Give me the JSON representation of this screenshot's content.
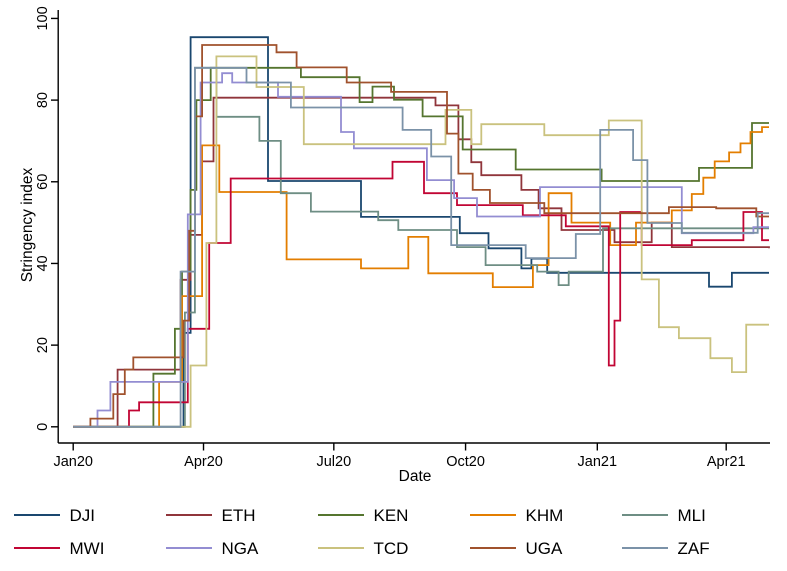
{
  "figure": {
    "x_axis_title": "Date",
    "y_axis_title": "Stringency index"
  },
  "chart_data": {
    "type": "line",
    "line_style": "step-post",
    "title": "",
    "xlabel": "Date",
    "ylabel": "Stringency index",
    "grid": false,
    "legend_position": "bottom",
    "x_axis": {
      "range": [
        "2020-01-01",
        "2021-05-01"
      ],
      "ticks": [
        {
          "label": "Jan20",
          "date": "2020-01-01"
        },
        {
          "label": "Apr20",
          "date": "2020-04-01"
        },
        {
          "label": "Jul20",
          "date": "2020-07-01"
        },
        {
          "label": "Oct20",
          "date": "2020-10-01"
        },
        {
          "label": "Jan21",
          "date": "2021-01-01"
        },
        {
          "label": "Apr21",
          "date": "2021-04-01"
        }
      ]
    },
    "y_axis": {
      "range": [
        0,
        100
      ],
      "ticks": [
        0,
        20,
        40,
        60,
        80,
        100
      ]
    },
    "series": [
      {
        "name": "DJI",
        "color": "#1A476F",
        "points": [
          [
            "2020-01-01",
            0
          ],
          [
            "2020-03-18",
            23
          ],
          [
            "2020-03-23",
            95.4
          ],
          [
            "2020-05-16",
            60.2
          ],
          [
            "2020-07-20",
            51.4
          ],
          [
            "2020-09-27",
            47.4
          ],
          [
            "2020-10-17",
            43.7
          ],
          [
            "2020-11-09",
            38.8
          ],
          [
            "2020-11-16",
            41.2
          ],
          [
            "2020-11-27",
            37.7
          ],
          [
            "2021-03-20",
            34.3
          ],
          [
            "2021-04-05",
            37.7
          ],
          [
            "2021-05-01",
            37.7
          ]
        ]
      },
      {
        "name": "ETH",
        "color": "#90353B",
        "points": [
          [
            "2020-01-01",
            0
          ],
          [
            "2020-02-01",
            14
          ],
          [
            "2020-03-16",
            36
          ],
          [
            "2020-03-23",
            47
          ],
          [
            "2020-03-31",
            65
          ],
          [
            "2020-04-08",
            80.6
          ],
          [
            "2020-09-10",
            78.7
          ],
          [
            "2020-09-26",
            70.4
          ],
          [
            "2020-10-05",
            64.8
          ],
          [
            "2020-10-12",
            61.6
          ],
          [
            "2020-11-09",
            58
          ],
          [
            "2020-11-21",
            53.5
          ],
          [
            "2020-12-07",
            48.2
          ],
          [
            "2021-01-13",
            45.2
          ],
          [
            "2021-02-08",
            50
          ],
          [
            "2021-02-22",
            44
          ],
          [
            "2021-05-01",
            43.7
          ]
        ]
      },
      {
        "name": "KEN",
        "color": "#55752F",
        "points": [
          [
            "2020-01-01",
            0
          ],
          [
            "2020-02-26",
            13
          ],
          [
            "2020-03-12",
            24
          ],
          [
            "2020-03-17",
            38
          ],
          [
            "2020-03-23",
            58
          ],
          [
            "2020-03-27",
            80
          ],
          [
            "2020-04-06",
            87.9
          ],
          [
            "2020-06-08",
            85.6
          ],
          [
            "2020-07-19",
            79.5
          ],
          [
            "2020-07-28",
            83.3
          ],
          [
            "2020-08-12",
            80.1
          ],
          [
            "2020-09-01",
            76
          ],
          [
            "2020-09-29",
            67.9
          ],
          [
            "2020-11-05",
            63
          ],
          [
            "2021-01-04",
            60.2
          ],
          [
            "2021-03-13",
            63.4
          ],
          [
            "2021-04-19",
            74.4
          ],
          [
            "2021-05-01",
            74.4
          ]
        ]
      },
      {
        "name": "KHM",
        "color": "#E37E00",
        "points": [
          [
            "2020-01-01",
            0
          ],
          [
            "2020-03-01",
            11
          ],
          [
            "2020-03-17",
            32
          ],
          [
            "2020-03-31",
            68.9
          ],
          [
            "2020-04-12",
            57.5
          ],
          [
            "2020-05-29",
            41
          ],
          [
            "2020-07-20",
            38.8
          ],
          [
            "2020-08-22",
            46.5
          ],
          [
            "2020-09-05",
            37.6
          ],
          [
            "2020-10-20",
            34.2
          ],
          [
            "2020-11-17",
            39.6
          ],
          [
            "2020-11-28",
            57.2
          ],
          [
            "2020-12-14",
            50
          ],
          [
            "2021-01-10",
            44.5
          ],
          [
            "2021-01-28",
            50
          ],
          [
            "2021-02-22",
            53
          ],
          [
            "2021-03-08",
            57
          ],
          [
            "2021-03-16",
            61
          ],
          [
            "2021-03-24",
            65
          ],
          [
            "2021-04-03",
            67.2
          ],
          [
            "2021-04-11",
            69.4
          ],
          [
            "2021-04-18",
            72.2
          ],
          [
            "2021-04-26",
            73.4
          ],
          [
            "2021-05-01",
            73.4
          ]
        ]
      },
      {
        "name": "MLI",
        "color": "#6E8E84",
        "points": [
          [
            "2020-01-01",
            0
          ],
          [
            "2020-03-19",
            28
          ],
          [
            "2020-03-26",
            87.9
          ],
          [
            "2020-04-10",
            75.9
          ],
          [
            "2020-05-10",
            70
          ],
          [
            "2020-05-25",
            57.2
          ],
          [
            "2020-06-15",
            52.7
          ],
          [
            "2020-08-01",
            50.6
          ],
          [
            "2020-08-15",
            48.2
          ],
          [
            "2020-09-25",
            44
          ],
          [
            "2020-10-15",
            39.6
          ],
          [
            "2020-11-20",
            38
          ],
          [
            "2020-12-05",
            34.7
          ],
          [
            "2020-12-12",
            38
          ],
          [
            "2021-01-05",
            48.6
          ],
          [
            "2021-05-01",
            48.6
          ]
        ]
      },
      {
        "name": "MWI",
        "color": "#C10534",
        "points": [
          [
            "2020-01-01",
            0
          ],
          [
            "2020-02-09",
            4
          ],
          [
            "2020-02-16",
            6
          ],
          [
            "2020-03-21",
            24
          ],
          [
            "2020-04-05",
            45
          ],
          [
            "2020-04-20",
            60.8
          ],
          [
            "2020-08-11",
            64.9
          ],
          [
            "2020-09-02",
            57.2
          ],
          [
            "2020-09-25",
            54.3
          ],
          [
            "2020-11-10",
            51.8
          ],
          [
            "2020-12-10",
            49.1
          ],
          [
            "2021-01-09",
            15
          ],
          [
            "2021-01-13",
            26
          ],
          [
            "2021-01-17",
            52.6
          ],
          [
            "2021-02-01",
            44.5
          ],
          [
            "2021-03-08",
            45.7
          ],
          [
            "2021-04-13",
            52.6
          ],
          [
            "2021-04-26",
            45.7
          ],
          [
            "2021-05-01",
            45.7
          ]
        ]
      },
      {
        "name": "NGA",
        "color": "#938DD2",
        "points": [
          [
            "2020-01-01",
            0
          ],
          [
            "2020-01-18",
            4
          ],
          [
            "2020-01-27",
            11
          ],
          [
            "2020-03-21",
            52
          ],
          [
            "2020-03-30",
            84.3
          ],
          [
            "2020-04-14",
            86.6
          ],
          [
            "2020-04-21",
            84.3
          ],
          [
            "2020-05-23",
            80.8
          ],
          [
            "2020-07-06",
            72.2
          ],
          [
            "2020-07-15",
            68.2
          ],
          [
            "2020-09-04",
            60.4
          ],
          [
            "2020-09-23",
            56
          ],
          [
            "2020-10-09",
            51.5
          ],
          [
            "2020-11-22",
            58.7
          ],
          [
            "2021-03-01",
            47.4
          ],
          [
            "2021-04-20",
            48.9
          ],
          [
            "2021-05-01",
            48.9
          ]
        ]
      },
      {
        "name": "TCD",
        "color": "#CAC27E",
        "points": [
          [
            "2020-01-01",
            0
          ],
          [
            "2020-03-23",
            15
          ],
          [
            "2020-04-03",
            45
          ],
          [
            "2020-04-10",
            90.7
          ],
          [
            "2020-05-08",
            83.2
          ],
          [
            "2020-06-10",
            69.2
          ],
          [
            "2020-09-17",
            77.6
          ],
          [
            "2020-10-05",
            69.2
          ],
          [
            "2020-10-12",
            74.1
          ],
          [
            "2020-11-25",
            71.4
          ],
          [
            "2021-01-09",
            75
          ],
          [
            "2021-02-01",
            36.1
          ],
          [
            "2021-02-13",
            24.4
          ],
          [
            "2021-02-27",
            21.7
          ],
          [
            "2021-03-21",
            16.8
          ],
          [
            "2021-04-05",
            13.4
          ],
          [
            "2021-04-15",
            25
          ],
          [
            "2021-05-01",
            25
          ]
        ]
      },
      {
        "name": "UGA",
        "color": "#A0522D",
        "points": [
          [
            "2020-01-01",
            0
          ],
          [
            "2020-01-13",
            2
          ],
          [
            "2020-01-29",
            8
          ],
          [
            "2020-02-06",
            14
          ],
          [
            "2020-02-12",
            17
          ],
          [
            "2020-03-18",
            26
          ],
          [
            "2020-03-22",
            48
          ],
          [
            "2020-03-26",
            76
          ],
          [
            "2020-03-31",
            93.5
          ],
          [
            "2020-05-22",
            91.7
          ],
          [
            "2020-06-05",
            88
          ],
          [
            "2020-07-10",
            84.3
          ],
          [
            "2020-08-10",
            82
          ],
          [
            "2020-09-18",
            71.8
          ],
          [
            "2020-09-26",
            62
          ],
          [
            "2020-10-06",
            58
          ],
          [
            "2020-10-18",
            54.8
          ],
          [
            "2020-11-25",
            52.3
          ],
          [
            "2021-02-20",
            53.8
          ],
          [
            "2021-03-25",
            53.5
          ],
          [
            "2021-04-22",
            51.5
          ],
          [
            "2021-05-01",
            51.5
          ]
        ]
      },
      {
        "name": "ZAF",
        "color": "#7B92A8",
        "points": [
          [
            "2020-01-01",
            0
          ],
          [
            "2020-03-16",
            38
          ],
          [
            "2020-03-26",
            87.9
          ],
          [
            "2020-05-01",
            84.3
          ],
          [
            "2020-06-01",
            78.2
          ],
          [
            "2020-08-18",
            72.7
          ],
          [
            "2020-09-07",
            66.2
          ],
          [
            "2020-09-21",
            44.5
          ],
          [
            "2020-11-12",
            41.3
          ],
          [
            "2020-12-17",
            47.2
          ],
          [
            "2021-01-03",
            72.7
          ],
          [
            "2021-01-26",
            65.3
          ],
          [
            "2021-02-05",
            49.9
          ],
          [
            "2021-03-01",
            47.5
          ],
          [
            "2021-04-23",
            52.3
          ],
          [
            "2021-05-01",
            52.3
          ]
        ]
      }
    ]
  }
}
